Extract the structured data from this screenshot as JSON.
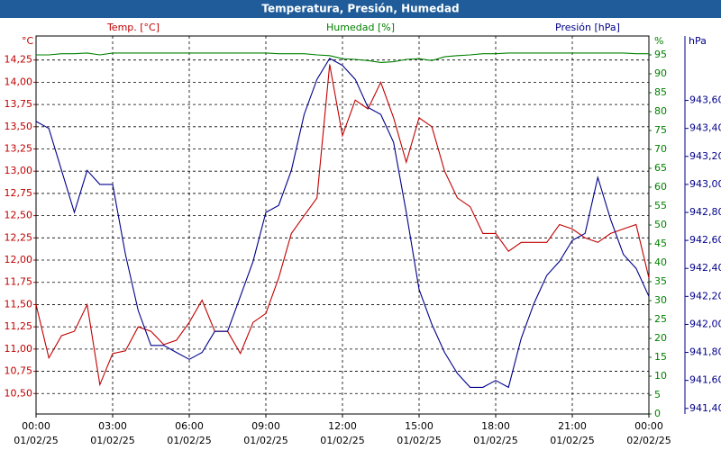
{
  "chart_data": {
    "type": "line",
    "title": "Temperatura, Presión, Humedad",
    "x": [
      0,
      0.5,
      1,
      1.5,
      2,
      2.5,
      3,
      3.5,
      4,
      4.5,
      5,
      5.5,
      6,
      6.5,
      7,
      7.5,
      8,
      8.5,
      9,
      9.5,
      10,
      10.5,
      11,
      11.5,
      12,
      12.5,
      13,
      13.5,
      14,
      14.5,
      15,
      15.5,
      16,
      16.5,
      17,
      17.5,
      18,
      18.5,
      19,
      19.5,
      20,
      20.5,
      21,
      21.5,
      22,
      22.5,
      23,
      23.5,
      24
    ],
    "xlim": [
      0,
      24
    ],
    "xticks": [
      {
        "value": 0,
        "label": "00:00"
      },
      {
        "value": 3,
        "label": "03:00"
      },
      {
        "value": 6,
        "label": "06:00"
      },
      {
        "value": 9,
        "label": "09:00"
      },
      {
        "value": 12,
        "label": "12:00"
      },
      {
        "value": 15,
        "label": "15:00"
      },
      {
        "value": 18,
        "label": "18:00"
      },
      {
        "value": 21,
        "label": "21:00"
      },
      {
        "value": 24,
        "label": "00:00"
      }
    ],
    "xtick_dates": [
      "01/02/25",
      "01/02/25",
      "01/02/25",
      "01/02/25",
      "01/02/25",
      "01/02/25",
      "01/02/25",
      "01/02/25",
      "02/02/25"
    ],
    "y_unit": "°C",
    "ylim": [
      10.27,
      14.52
    ],
    "yticks": [
      {
        "value": 10.5,
        "label": "10,50"
      },
      {
        "value": 10.75,
        "label": "10,75"
      },
      {
        "value": 11,
        "label": "11,00"
      },
      {
        "value": 11.25,
        "label": "11,25"
      },
      {
        "value": 11.5,
        "label": "11,50"
      },
      {
        "value": 11.75,
        "label": "11,75"
      },
      {
        "value": 12,
        "label": "12,00"
      },
      {
        "value": 12.25,
        "label": "12,25"
      },
      {
        "value": 12.5,
        "label": "12,50"
      },
      {
        "value": 12.75,
        "label": "12,75"
      },
      {
        "value": 13,
        "label": "13,00"
      },
      {
        "value": 13.25,
        "label": "13,25"
      },
      {
        "value": 13.5,
        "label": "13,50"
      },
      {
        "value": 13.75,
        "label": "13,75"
      },
      {
        "value": 14,
        "label": "14,00"
      },
      {
        "value": 14.25,
        "label": "14,25"
      }
    ],
    "y2_unit": "%",
    "y2lim": [
      0,
      100
    ],
    "y2ticks": [
      0,
      5,
      10,
      15,
      20,
      25,
      30,
      35,
      40,
      45,
      50,
      55,
      60,
      65,
      70,
      75,
      80,
      85,
      90,
      95
    ],
    "y3_unit": "hPa",
    "y3lim": [
      941.36,
      944.06
    ],
    "y3ticks": [
      {
        "value": 941.4,
        "label": "941,40"
      },
      {
        "value": 941.6,
        "label": "941,60"
      },
      {
        "value": 941.8,
        "label": "941,80"
      },
      {
        "value": 942,
        "label": "942,00"
      },
      {
        "value": 942.2,
        "label": "942,20"
      },
      {
        "value": 942.4,
        "label": "942,40"
      },
      {
        "value": 942.6,
        "label": "942,60"
      },
      {
        "value": 942.8,
        "label": "942,80"
      },
      {
        "value": 943,
        "label": "943,00"
      },
      {
        "value": 943.2,
        "label": "943,20"
      },
      {
        "value": 943.4,
        "label": "943,40"
      },
      {
        "value": 943.6,
        "label": "943,60"
      }
    ],
    "grid": true,
    "series": [
      {
        "name": "Temp. [°C]",
        "color": "#c00000",
        "axis": "y",
        "values": [
          11.5,
          10.9,
          11.15,
          11.2,
          11.5,
          10.6,
          10.95,
          10.98,
          11.25,
          11.2,
          11.05,
          11.1,
          11.3,
          11.55,
          11.2,
          11.2,
          10.95,
          11.3,
          11.4,
          11.8,
          12.3,
          12.5,
          12.7,
          14.2,
          13.4,
          13.8,
          13.7,
          14.0,
          13.6,
          13.1,
          13.6,
          13.5,
          13.0,
          12.7,
          12.6,
          12.3,
          12.3,
          12.1,
          12.2,
          12.2,
          12.2,
          12.4,
          12.35,
          12.25,
          12.2,
          12.3,
          12.35,
          12.4,
          11.8
        ]
      },
      {
        "name": "Humedad [%]",
        "color": "#008000",
        "axis": "y2",
        "values": [
          95,
          95,
          95.3,
          95.3,
          95.5,
          95,
          95.5,
          95.5,
          95.5,
          95.5,
          95.5,
          95.5,
          95.5,
          95.5,
          95.5,
          95.5,
          95.5,
          95.5,
          95.5,
          95.3,
          95.3,
          95.3,
          95,
          94.8,
          94,
          93.8,
          93.5,
          93,
          93.2,
          93.8,
          94,
          93.5,
          94.5,
          94.8,
          95,
          95.3,
          95.3,
          95.5,
          95.5,
          95.5,
          95.5,
          95.5,
          95.5,
          95.5,
          95.5,
          95.5,
          95.5,
          95.3,
          95.3
        ]
      },
      {
        "name": "Presión [hPa]",
        "color": "#00008b",
        "axis": "y3",
        "values": [
          943.45,
          943.4,
          943.1,
          942.8,
          943.1,
          943.0,
          943.0,
          942.5,
          942.1,
          941.85,
          941.85,
          941.8,
          941.75,
          941.8,
          941.95,
          941.95,
          942.2,
          942.45,
          942.8,
          942.85,
          943.1,
          943.5,
          943.75,
          943.9,
          943.85,
          943.75,
          943.55,
          943.5,
          943.3,
          942.8,
          942.25,
          942.0,
          941.8,
          941.65,
          941.55,
          941.55,
          941.6,
          941.55,
          941.9,
          942.15,
          942.35,
          942.45,
          942.6,
          942.65,
          943.05,
          942.75,
          942.5,
          942.4,
          942.2
        ]
      }
    ]
  }
}
